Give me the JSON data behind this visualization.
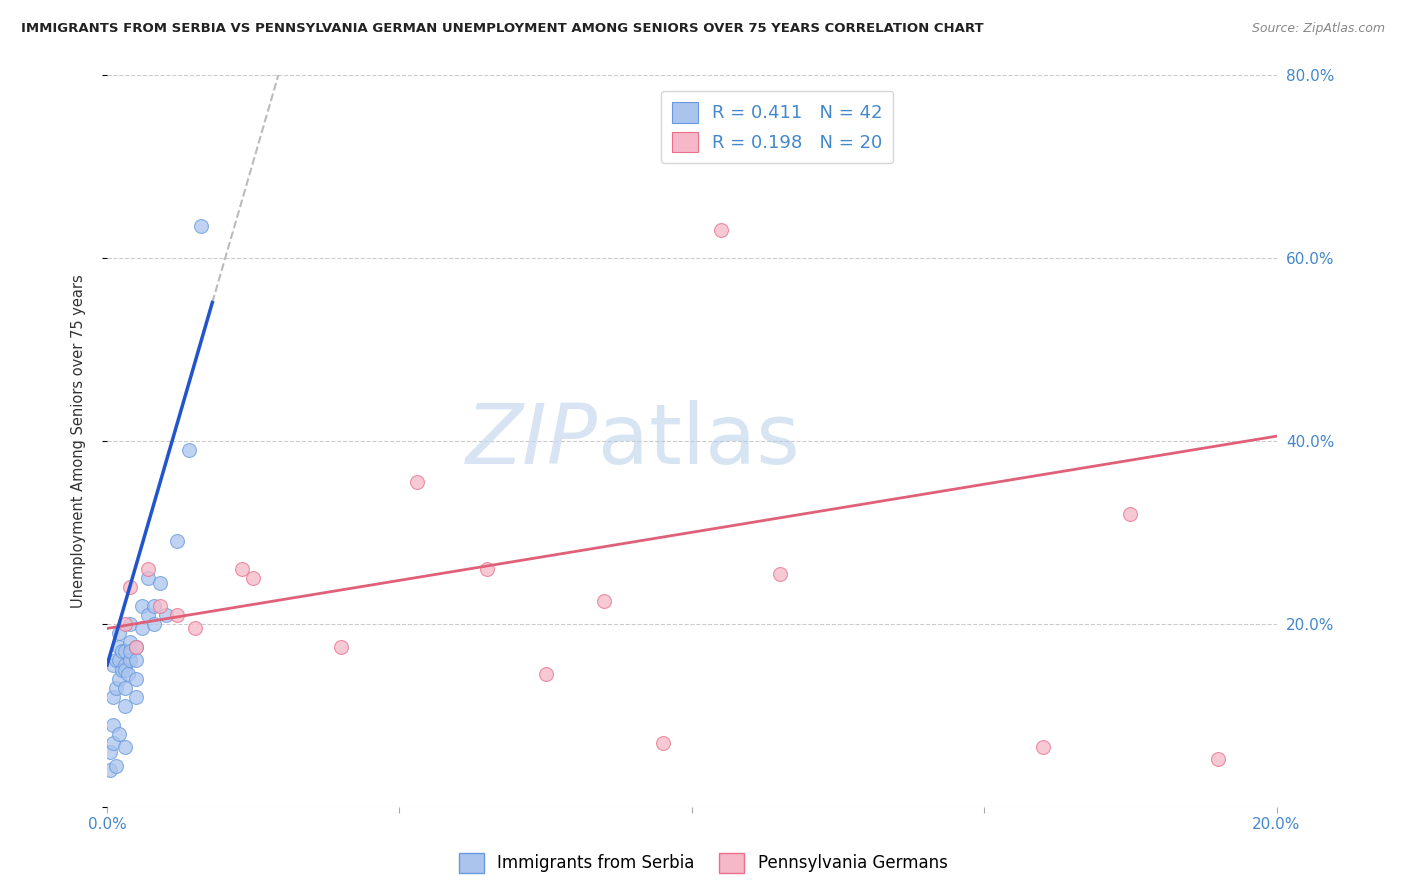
{
  "title": "IMMIGRANTS FROM SERBIA VS PENNSYLVANIA GERMAN UNEMPLOYMENT AMONG SENIORS OVER 75 YEARS CORRELATION CHART",
  "source": "Source: ZipAtlas.com",
  "ylabel": "Unemployment Among Seniors over 75 years",
  "xlim": [
    0.0,
    0.2
  ],
  "ylim": [
    0.0,
    0.8
  ],
  "xticks": [
    0.0,
    0.05,
    0.1,
    0.15,
    0.2
  ],
  "yticks": [
    0.0,
    0.2,
    0.4,
    0.6,
    0.8
  ],
  "blue_color": "#aac4ee",
  "blue_edge_color": "#6699dd",
  "pink_color": "#f5b8c8",
  "pink_edge_color": "#e8708a",
  "blue_line_color": "#2255cc",
  "pink_line_color": "#e0607a",
  "gray_line_color": "#bbbbbb",
  "watermark_zip": "ZIP",
  "watermark_atlas": "atlas",
  "marker_size": 100,
  "blue_x": [
    0.0005,
    0.001,
    0.001,
    0.001,
    0.0015,
    0.0015,
    0.002,
    0.002,
    0.002,
    0.002,
    0.0025,
    0.0025,
    0.003,
    0.003,
    0.003,
    0.003,
    0.003,
    0.0035,
    0.004,
    0.004,
    0.004,
    0.004,
    0.005,
    0.005,
    0.005,
    0.005,
    0.006,
    0.006,
    0.007,
    0.007,
    0.008,
    0.008,
    0.009,
    0.01,
    0.012,
    0.014,
    0.016,
    0.0005,
    0.001,
    0.0015,
    0.002,
    0.003
  ],
  "blue_y": [
    0.06,
    0.09,
    0.12,
    0.155,
    0.13,
    0.16,
    0.14,
    0.16,
    0.175,
    0.19,
    0.17,
    0.15,
    0.155,
    0.17,
    0.15,
    0.13,
    0.11,
    0.145,
    0.16,
    0.18,
    0.2,
    0.17,
    0.175,
    0.16,
    0.14,
    0.12,
    0.195,
    0.22,
    0.25,
    0.21,
    0.22,
    0.2,
    0.245,
    0.21,
    0.29,
    0.39,
    0.635,
    0.04,
    0.07,
    0.045,
    0.08,
    0.065
  ],
  "pink_x": [
    0.003,
    0.004,
    0.005,
    0.007,
    0.009,
    0.012,
    0.015,
    0.023,
    0.025,
    0.04,
    0.053,
    0.065,
    0.075,
    0.085,
    0.095,
    0.105,
    0.115,
    0.16,
    0.175,
    0.19
  ],
  "pink_y": [
    0.2,
    0.24,
    0.175,
    0.26,
    0.22,
    0.21,
    0.195,
    0.26,
    0.25,
    0.175,
    0.355,
    0.26,
    0.145,
    0.225,
    0.07,
    0.63,
    0.255,
    0.065,
    0.32,
    0.052
  ],
  "blue_line_x_end": 0.018,
  "gray_line_x_start": 0.018,
  "gray_line_x_end": 0.2,
  "blue_line_slope": 22.0,
  "blue_line_intercept": 0.155,
  "pink_line_slope": 1.05,
  "pink_line_intercept": 0.195
}
